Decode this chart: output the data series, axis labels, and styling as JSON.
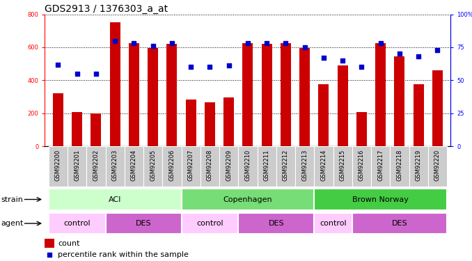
{
  "title": "GDS2913 / 1376303_a_at",
  "samples": [
    "GSM92200",
    "GSM92201",
    "GSM92202",
    "GSM92203",
    "GSM92204",
    "GSM92205",
    "GSM92206",
    "GSM92207",
    "GSM92208",
    "GSM92209",
    "GSM92210",
    "GSM92211",
    "GSM92212",
    "GSM92213",
    "GSM92214",
    "GSM92215",
    "GSM92216",
    "GSM92217",
    "GSM92218",
    "GSM92219",
    "GSM92220"
  ],
  "counts": [
    320,
    205,
    200,
    750,
    625,
    595,
    620,
    285,
    265,
    295,
    625,
    620,
    625,
    595,
    375,
    490,
    205,
    625,
    545,
    375,
    460
  ],
  "percentile": [
    62,
    55,
    55,
    80,
    78,
    76,
    78,
    60,
    60,
    61,
    78,
    78,
    78,
    75,
    67,
    65,
    60,
    78,
    70,
    68,
    73
  ],
  "bar_color": "#cc0000",
  "dot_color": "#0000cc",
  "ylim_left": [
    0,
    800
  ],
  "ylim_right": [
    0,
    100
  ],
  "yticks_left": [
    0,
    200,
    400,
    600,
    800
  ],
  "yticks_right": [
    0,
    25,
    50,
    75,
    100
  ],
  "right_tick_labels": [
    "0",
    "25",
    "50",
    "75",
    "100%"
  ],
  "left_tick_labels": [
    "0",
    "200",
    "400",
    "600",
    "800"
  ],
  "strain_groups": [
    {
      "label": "ACI",
      "start": 0,
      "end": 6,
      "color": "#ccffcc"
    },
    {
      "label": "Copenhagen",
      "start": 7,
      "end": 13,
      "color": "#77dd77"
    },
    {
      "label": "Brown Norway",
      "start": 14,
      "end": 20,
      "color": "#44cc44"
    }
  ],
  "agent_groups": [
    {
      "label": "control",
      "start": 0,
      "end": 2,
      "color": "#ffccff"
    },
    {
      "label": "DES",
      "start": 3,
      "end": 6,
      "color": "#cc66cc"
    },
    {
      "label": "control",
      "start": 7,
      "end": 9,
      "color": "#ffccff"
    },
    {
      "label": "DES",
      "start": 10,
      "end": 13,
      "color": "#cc66cc"
    },
    {
      "label": "control",
      "start": 14,
      "end": 15,
      "color": "#ffccff"
    },
    {
      "label": "DES",
      "start": 16,
      "end": 20,
      "color": "#cc66cc"
    }
  ],
  "xtick_bg_color": "#cccccc",
  "bg_color": "#ffffff",
  "title_fontsize": 10,
  "tick_fontsize": 6,
  "row_fontsize": 8,
  "legend_fontsize": 8
}
